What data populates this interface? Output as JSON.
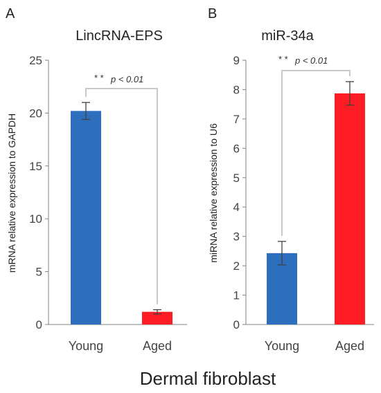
{
  "footer": "Dermal fibroblast",
  "colors": {
    "young": "#2e6fbd",
    "aged": "#ff1d25",
    "axis": "#808080",
    "bracket": "#c8c8c8",
    "error": "#404040"
  },
  "chart_data": [
    {
      "type": "bar",
      "panel": "A",
      "title": "LincRNA-EPS",
      "xlabel": "",
      "ylabel": "mRNA relative expression to GAPDH",
      "categories": [
        "Young",
        "Aged"
      ],
      "values": [
        20.2,
        1.2
      ],
      "errors": [
        0.8,
        0.2
      ],
      "ylim": [
        0,
        25
      ],
      "yticks": [
        "0",
        "5",
        "10",
        "15",
        "20",
        "25"
      ],
      "grid": false,
      "significance": {
        "stars": "* *",
        "text": "p < 0.01"
      }
    },
    {
      "type": "bar",
      "panel": "B",
      "title": "miR-34a",
      "xlabel": "",
      "ylabel": "miRNA relative expression to U6",
      "categories": [
        "Young",
        "Aged"
      ],
      "values": [
        2.43,
        7.87
      ],
      "errors": [
        0.4,
        0.4
      ],
      "ylim": [
        0,
        9
      ],
      "yticks": [
        "0",
        "1",
        "2",
        "3",
        "4",
        "5",
        "6",
        "7",
        "8",
        "9"
      ],
      "grid": false,
      "significance": {
        "stars": "* *",
        "text": "p < 0.01"
      }
    }
  ]
}
